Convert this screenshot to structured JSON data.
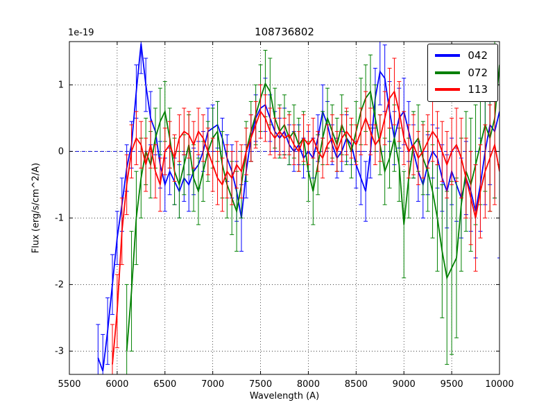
{
  "chart_data": {
    "type": "line",
    "title": "108736802",
    "xlabel": "Wavelength (A)",
    "ylabel": "Flux (erg/s/cm^2/A)",
    "y_offset_label": "1e-19",
    "xlim": [
      5500,
      10000
    ],
    "ylim": [
      -3.35,
      1.65
    ],
    "xticks": [
      5500,
      6000,
      6500,
      7000,
      7500,
      8000,
      8500,
      9000,
      9500,
      10000
    ],
    "xtick_labels": [
      "5500",
      "6000",
      "6500",
      "7000",
      "7500",
      "8000",
      "8500",
      "9000",
      "9500",
      "10000"
    ],
    "yticks": [
      1,
      0,
      -1,
      -2,
      -3
    ],
    "ytick_labels": [
      "1",
      "0",
      "-1",
      "-2",
      "-3"
    ],
    "grid": true,
    "grid_style": "dotted",
    "error_bars": true,
    "legend_position": "upper right",
    "zero_line": {
      "y": 0,
      "color": "#0000dd",
      "style": "dashed"
    },
    "series": [
      {
        "name": "042",
        "color": "#0000ff",
        "x_start": 5800,
        "x_step": 50,
        "y": [
          -3.1,
          -3.3,
          -2.7,
          -2.0,
          -1.3,
          -0.8,
          -0.25,
          0.1,
          0.9,
          1.62,
          1.0,
          0.5,
          0.3,
          -0.2,
          -0.5,
          -0.3,
          -0.45,
          -0.6,
          -0.4,
          -0.5,
          -0.3,
          -0.2,
          0.0,
          0.3,
          0.35,
          0.4,
          0.2,
          -0.1,
          -0.3,
          -0.6,
          -1.0,
          -0.3,
          0.2,
          0.5,
          0.65,
          0.7,
          0.5,
          0.3,
          0.2,
          0.3,
          0.1,
          0.0,
          0.1,
          -0.1,
          0.0,
          -0.1,
          0.2,
          0.6,
          0.4,
          0.1,
          -0.1,
          0.0,
          0.2,
          0.1,
          -0.2,
          -0.4,
          -0.6,
          0.0,
          0.8,
          1.2,
          1.1,
          0.6,
          0.2,
          0.5,
          0.6,
          0.3,
          0.0,
          -0.3,
          -0.5,
          -0.2,
          0.0,
          -0.1,
          -0.4,
          -0.6,
          -0.3,
          -0.5,
          -0.7,
          -0.4,
          -0.6,
          -0.9,
          -0.5,
          0.0,
          0.4,
          0.3,
          0.6
        ],
        "err": [
          0.5,
          0.55,
          0.5,
          0.45,
          0.4,
          0.4,
          0.35,
          0.35,
          0.4,
          0.45,
          0.4,
          0.4,
          0.35,
          0.35,
          0.4,
          0.35,
          0.35,
          0.4,
          0.35,
          0.4,
          0.35,
          0.35,
          0.3,
          0.35,
          0.35,
          0.35,
          0.3,
          0.35,
          0.4,
          0.45,
          0.5,
          0.4,
          0.35,
          0.35,
          0.35,
          0.4,
          0.35,
          0.3,
          0.3,
          0.35,
          0.3,
          0.3,
          0.3,
          0.3,
          0.3,
          0.3,
          0.35,
          0.4,
          0.35,
          0.3,
          0.3,
          0.3,
          0.35,
          0.3,
          0.35,
          0.4,
          0.45,
          0.4,
          0.45,
          0.5,
          0.5,
          0.45,
          0.4,
          0.45,
          0.5,
          0.45,
          0.4,
          0.45,
          0.5,
          0.45,
          0.4,
          0.45,
          0.5,
          0.55,
          0.5,
          0.55,
          0.6,
          0.55,
          0.6,
          0.7,
          0.7,
          0.8,
          0.9,
          1.0,
          2.2
        ]
      },
      {
        "name": "072",
        "color": "#008000",
        "x_start": 6100,
        "x_step": 50,
        "y": [
          -3.0,
          -2.1,
          -1.0,
          -0.4,
          0.0,
          -0.2,
          0.2,
          0.45,
          0.6,
          0.2,
          -0.3,
          -0.5,
          -0.2,
          0.1,
          -0.4,
          -0.6,
          -0.3,
          0.0,
          0.2,
          0.3,
          -0.2,
          -0.5,
          -0.7,
          -0.9,
          -0.5,
          0.0,
          0.3,
          0.55,
          0.8,
          1.02,
          0.9,
          0.5,
          0.3,
          0.4,
          0.2,
          0.3,
          0.1,
          0.2,
          -0.3,
          -0.6,
          -0.2,
          0.2,
          0.5,
          0.3,
          0.1,
          0.4,
          0.2,
          0.0,
          0.3,
          0.6,
          0.8,
          0.9,
          0.5,
          0.1,
          -0.3,
          -0.1,
          0.2,
          -0.2,
          -1.1,
          -0.4,
          0.1,
          0.2,
          -0.1,
          -0.3,
          -0.6,
          -1.0,
          -1.5,
          -1.9,
          -1.75,
          -1.6,
          -0.8,
          -0.3,
          -0.5,
          -0.2,
          0.1,
          0.4,
          0.2,
          0.5,
          1.3
        ],
        "err": [
          1.0,
          0.9,
          0.7,
          0.6,
          0.5,
          0.5,
          0.45,
          0.5,
          0.45,
          0.45,
          0.5,
          0.5,
          0.45,
          0.45,
          0.5,
          0.5,
          0.45,
          0.45,
          0.45,
          0.45,
          0.5,
          0.5,
          0.55,
          0.6,
          0.5,
          0.45,
          0.45,
          0.45,
          0.5,
          0.5,
          0.5,
          0.45,
          0.4,
          0.45,
          0.4,
          0.4,
          0.4,
          0.4,
          0.45,
          0.5,
          0.45,
          0.4,
          0.45,
          0.4,
          0.4,
          0.45,
          0.4,
          0.4,
          0.45,
          0.5,
          0.5,
          0.55,
          0.5,
          0.45,
          0.5,
          0.45,
          0.5,
          0.55,
          0.8,
          0.6,
          0.5,
          0.5,
          0.55,
          0.6,
          0.7,
          0.8,
          1.0,
          1.3,
          1.3,
          1.2,
          1.0,
          0.9,
          1.0,
          0.9,
          0.9,
          1.0,
          1.1,
          1.2,
          1.5
        ]
      },
      {
        "name": "113",
        "color": "#ff0000",
        "x_start": 5950,
        "x_step": 50,
        "y": [
          -3.2,
          -2.4,
          -1.2,
          -0.5,
          0.0,
          0.2,
          0.1,
          -0.2,
          0.1,
          -0.3,
          -0.5,
          0.0,
          0.1,
          -0.1,
          0.2,
          0.3,
          0.25,
          0.1,
          0.3,
          0.2,
          0.0,
          -0.2,
          -0.4,
          -0.5,
          -0.3,
          -0.4,
          -0.2,
          -0.3,
          0.0,
          0.2,
          0.4,
          0.6,
          0.5,
          0.3,
          0.2,
          0.3,
          0.2,
          0.25,
          0.1,
          0.0,
          0.2,
          0.1,
          0.2,
          0.0,
          -0.1,
          0.1,
          0.2,
          0.0,
          0.2,
          0.3,
          0.2,
          0.1,
          0.3,
          0.5,
          0.3,
          0.1,
          0.2,
          0.5,
          0.8,
          0.9,
          0.6,
          0.2,
          0.0,
          0.1,
          -0.1,
          0.0,
          0.15,
          0.3,
          0.2,
          0.0,
          -0.2,
          0.0,
          0.1,
          -0.1,
          -0.4,
          -0.7,
          -1.0,
          -0.6,
          -0.3,
          -0.1,
          0.1,
          -0.3
        ],
        "err": [
          0.6,
          0.55,
          0.5,
          0.45,
          0.4,
          0.4,
          0.35,
          0.4,
          0.35,
          0.4,
          0.4,
          0.35,
          0.35,
          0.35,
          0.35,
          0.35,
          0.35,
          0.35,
          0.35,
          0.35,
          0.35,
          0.4,
          0.4,
          0.4,
          0.4,
          0.4,
          0.35,
          0.4,
          0.35,
          0.35,
          0.35,
          0.4,
          0.35,
          0.35,
          0.3,
          0.35,
          0.3,
          0.3,
          0.3,
          0.3,
          0.35,
          0.3,
          0.3,
          0.3,
          0.3,
          0.3,
          0.35,
          0.3,
          0.35,
          0.35,
          0.3,
          0.3,
          0.35,
          0.4,
          0.35,
          0.3,
          0.35,
          0.4,
          0.45,
          0.5,
          0.45,
          0.4,
          0.4,
          0.45,
          0.4,
          0.4,
          0.4,
          0.45,
          0.4,
          0.45,
          0.5,
          0.5,
          0.55,
          0.6,
          0.6,
          0.7,
          0.8,
          0.7,
          0.7,
          0.8,
          0.9,
          3.2
        ]
      }
    ]
  }
}
